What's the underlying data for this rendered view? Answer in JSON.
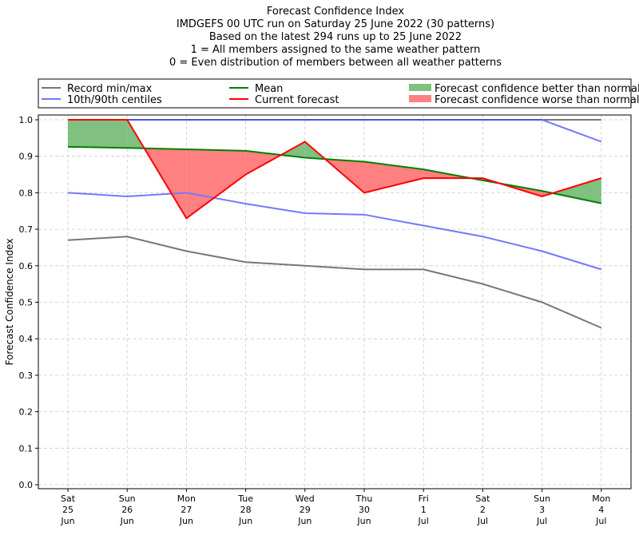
{
  "chart_data": {
    "type": "line",
    "title_lines": [
      "Forecast Confidence Index",
      "IMDGEFS 00 UTC run on Saturday 25 June 2022 (30 patterns)",
      "Based on the latest 294 runs up to 25 June 2022",
      "1 = All members assigned to the same weather pattern",
      "0 = Even distribution of members between all weather patterns"
    ],
    "ylabel": "Forecast Confidence Index",
    "xlabel": "",
    "ylim": [
      0,
      1
    ],
    "yticks": [
      "0.0",
      "0.1",
      "0.2",
      "0.3",
      "0.4",
      "0.5",
      "0.6",
      "0.7",
      "0.8",
      "0.9",
      "1.0"
    ],
    "categories": [
      [
        "Sat",
        "25",
        "Jun"
      ],
      [
        "Sun",
        "26",
        "Jun"
      ],
      [
        "Mon",
        "27",
        "Jun"
      ],
      [
        "Tue",
        "28",
        "Jun"
      ],
      [
        "Wed",
        "29",
        "Jun"
      ],
      [
        "Thu",
        "30",
        "Jun"
      ],
      [
        "Fri",
        "1",
        "Jul"
      ],
      [
        "Sat",
        "2",
        "Jul"
      ],
      [
        "Sun",
        "3",
        "Jul"
      ],
      [
        "Mon",
        "4",
        "Jul"
      ]
    ],
    "grid": true,
    "legend_placement": "top",
    "series": [
      {
        "name": "Record min/max",
        "role": "record_min",
        "color": "#777777",
        "values": [
          0.67,
          0.68,
          0.64,
          0.61,
          0.6,
          0.59,
          0.59,
          0.55,
          0.5,
          0.43
        ]
      },
      {
        "name": "Record min/max",
        "role": "record_max",
        "color": "#777777",
        "values": [
          1,
          1,
          1,
          1,
          1,
          1,
          1,
          1,
          1,
          1
        ]
      },
      {
        "name": "10th/90th centiles",
        "role": "p10",
        "color": "#7777ff",
        "values": [
          0.8,
          0.79,
          0.8,
          0.77,
          0.744,
          0.74,
          0.71,
          0.68,
          0.64,
          0.59
        ]
      },
      {
        "name": "10th/90th centiles",
        "role": "p90",
        "color": "#7777ff",
        "values": [
          1,
          1,
          1,
          1,
          1,
          1,
          1,
          1,
          1,
          0.94
        ]
      },
      {
        "name": "Mean",
        "role": "mean",
        "color": "#008000",
        "values": [
          0.926,
          0.923,
          0.919,
          0.915,
          0.896,
          0.885,
          0.864,
          0.834,
          0.805,
          0.771
        ]
      },
      {
        "name": "Current forecast",
        "role": "current",
        "color": "#ff0000",
        "values": [
          1.0,
          1.0,
          0.73,
          0.85,
          0.94,
          0.8,
          0.84,
          0.84,
          0.79,
          0.84
        ]
      }
    ],
    "legend": [
      {
        "label": "Record min/max",
        "color": "#777777",
        "kind": "line"
      },
      {
        "label": "10th/90th centiles",
        "color": "#7777ff",
        "kind": "line"
      },
      {
        "label": "Mean",
        "color": "#008000",
        "kind": "line"
      },
      {
        "label": "Current forecast",
        "color": "#ff0000",
        "kind": "line"
      },
      {
        "label": "Forecast confidence better than normal",
        "color": "#80c080",
        "kind": "patch"
      },
      {
        "label": "Forecast confidence worse than normal",
        "color": "#ff8080",
        "kind": "patch"
      }
    ],
    "fill_better_color": "#80c080",
    "fill_worse_color": "#ff8080"
  }
}
